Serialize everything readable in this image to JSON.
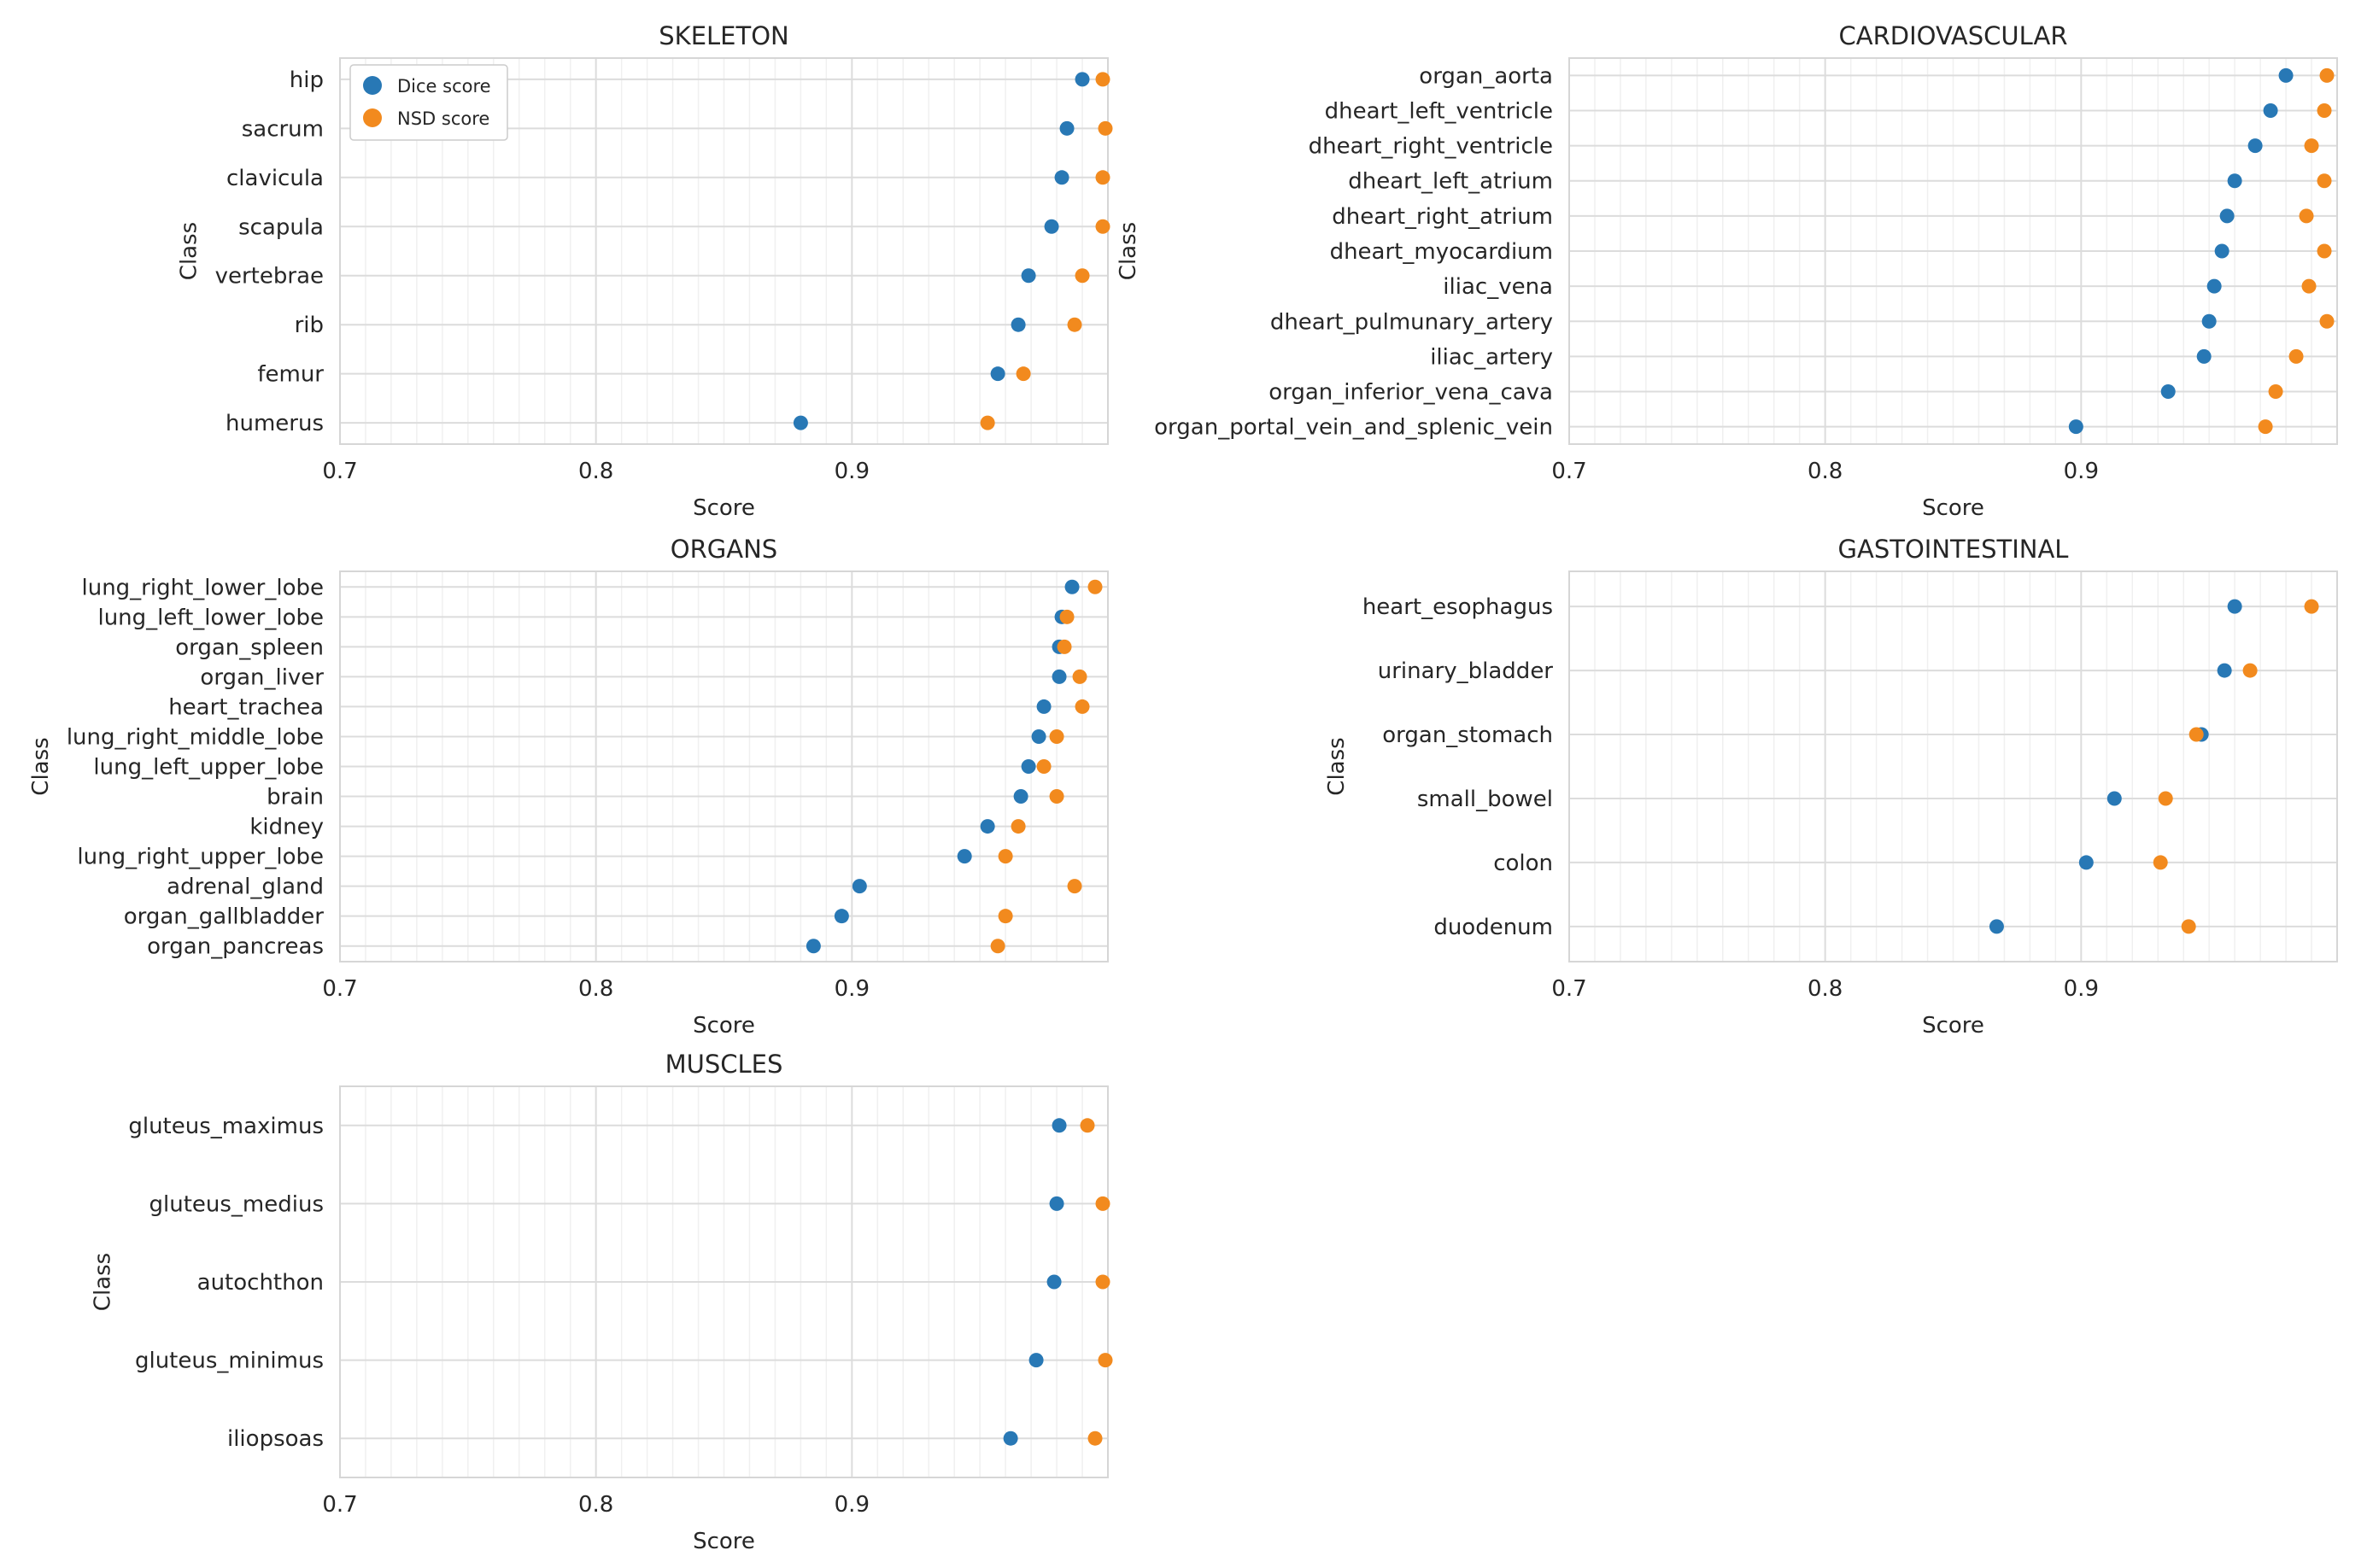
{
  "colors": {
    "dice": "#2878b5",
    "nsd": "#f28a1e",
    "grid_major": "#dcdcdc",
    "grid_minor": "#f0f0f0",
    "frame": "#d6d6d6",
    "text": "#262626"
  },
  "chart_data": [
    {
      "type": "scatter",
      "title": "SKELETON",
      "xlabel": "Score",
      "ylabel": "Class",
      "xlim": [
        0.7,
        1.0
      ],
      "xticks": [
        "0.7",
        "0.8",
        "0.9"
      ],
      "legend": {
        "placement": "top-left",
        "entries": [
          "Dice score",
          "NSD score"
        ]
      },
      "categories": [
        "hip",
        "sacrum",
        "clavicula",
        "scapula",
        "vertebrae",
        "rib",
        "femur",
        "humerus"
      ],
      "series": [
        {
          "name": "Dice score",
          "values": [
            0.99,
            0.984,
            0.982,
            0.978,
            0.969,
            0.965,
            0.957,
            0.88
          ]
        },
        {
          "name": "NSD score",
          "values": [
            0.998,
            0.999,
            0.998,
            0.998,
            0.99,
            0.987,
            0.967,
            0.953
          ]
        }
      ]
    },
    {
      "type": "scatter",
      "title": "CARDIOVASCULAR",
      "xlabel": "Score",
      "ylabel": "Class",
      "xlim": [
        0.7,
        1.0
      ],
      "xticks": [
        "0.7",
        "0.8",
        "0.9"
      ],
      "categories": [
        "organ_aorta",
        "dheart_left_ventricle",
        "dheart_right_ventricle",
        "dheart_left_atrium",
        "dheart_right_atrium",
        "dheart_myocardium",
        "iliac_vena",
        "dheart_pulmunary_artery",
        "iliac_artery",
        "organ_inferior_vena_cava",
        "organ_portal_vein_and_splenic_vein"
      ],
      "series": [
        {
          "name": "Dice score",
          "values": [
            0.98,
            0.974,
            0.968,
            0.96,
            0.957,
            0.955,
            0.952,
            0.95,
            0.948,
            0.934,
            0.898
          ]
        },
        {
          "name": "NSD score",
          "values": [
            0.996,
            0.995,
            0.99,
            0.995,
            0.988,
            0.995,
            0.989,
            0.996,
            0.984,
            0.976,
            0.972
          ]
        }
      ]
    },
    {
      "type": "scatter",
      "title": "ORGANS",
      "xlabel": "Score",
      "ylabel": "Class",
      "xlim": [
        0.7,
        1.0
      ],
      "xticks": [
        "0.7",
        "0.8",
        "0.9"
      ],
      "categories": [
        "lung_right_lower_lobe",
        "lung_left_lower_lobe",
        "organ_spleen",
        "organ_liver",
        "heart_trachea",
        "lung_right_middle_lobe",
        "lung_left_upper_lobe",
        "brain",
        "kidney",
        "lung_right_upper_lobe",
        "adrenal_gland",
        "organ_gallbladder",
        "organ_pancreas"
      ],
      "series": [
        {
          "name": "Dice score",
          "values": [
            0.986,
            0.982,
            0.981,
            0.981,
            0.975,
            0.973,
            0.969,
            0.966,
            0.953,
            0.944,
            0.903,
            0.896,
            0.885
          ]
        },
        {
          "name": "NSD score",
          "values": [
            0.995,
            0.984,
            0.983,
            0.989,
            0.99,
            0.98,
            0.975,
            0.98,
            0.965,
            0.96,
            0.987,
            0.96,
            0.957
          ]
        }
      ]
    },
    {
      "type": "scatter",
      "title": "GASTOINTESTINAL",
      "xlabel": "Score",
      "ylabel": "Class",
      "xlim": [
        0.7,
        1.0
      ],
      "xticks": [
        "0.7",
        "0.8",
        "0.9"
      ],
      "categories": [
        "heart_esophagus",
        "urinary_bladder",
        "organ_stomach",
        "small_bowel",
        "colon",
        "duodenum"
      ],
      "series": [
        {
          "name": "Dice score",
          "values": [
            0.96,
            0.956,
            0.947,
            0.913,
            0.902,
            0.867
          ]
        },
        {
          "name": "NSD score",
          "values": [
            0.99,
            0.966,
            0.945,
            0.933,
            0.931,
            0.942
          ]
        }
      ]
    },
    {
      "type": "scatter",
      "title": "MUSCLES",
      "xlabel": "Score",
      "ylabel": "Class",
      "xlim": [
        0.7,
        1.0
      ],
      "xticks": [
        "0.7",
        "0.8",
        "0.9"
      ],
      "categories": [
        "gluteus_maximus",
        "gluteus_medius",
        "autochthon",
        "gluteus_minimus",
        "iliopsoas"
      ],
      "series": [
        {
          "name": "Dice score",
          "values": [
            0.981,
            0.98,
            0.979,
            0.972,
            0.962
          ]
        },
        {
          "name": "NSD score",
          "values": [
            0.992,
            0.998,
            0.998,
            0.999,
            0.995
          ]
        }
      ]
    }
  ]
}
